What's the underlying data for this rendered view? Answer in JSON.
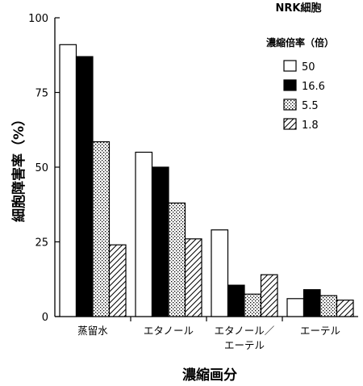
{
  "chart_data": {
    "type": "bar",
    "title": "NRK細胞",
    "xlabel": "濃縮画分",
    "ylabel": "細胞障害率（%）",
    "ylim": [
      0,
      100
    ],
    "yticks": [
      0,
      25,
      50,
      75,
      100
    ],
    "categories": [
      [
        "蒸留水"
      ],
      [
        "エタノール"
      ],
      [
        "エタノール／",
        "エーテル"
      ],
      [
        "エーテル"
      ]
    ],
    "legend_title": "濃縮倍率（倍）",
    "legend_placement": "top-right",
    "grid": false,
    "series": [
      {
        "name": "50",
        "pattern": "white",
        "values": [
          91,
          55,
          29,
          6
        ]
      },
      {
        "name": "16.6",
        "pattern": "black",
        "values": [
          87,
          50,
          10.5,
          9
        ]
      },
      {
        "name": "5.5",
        "pattern": "dotted",
        "values": [
          58.5,
          38,
          7.5,
          7
        ]
      },
      {
        "name": "1.8",
        "pattern": "hatch",
        "values": [
          24,
          26,
          14,
          5.5
        ]
      }
    ]
  }
}
